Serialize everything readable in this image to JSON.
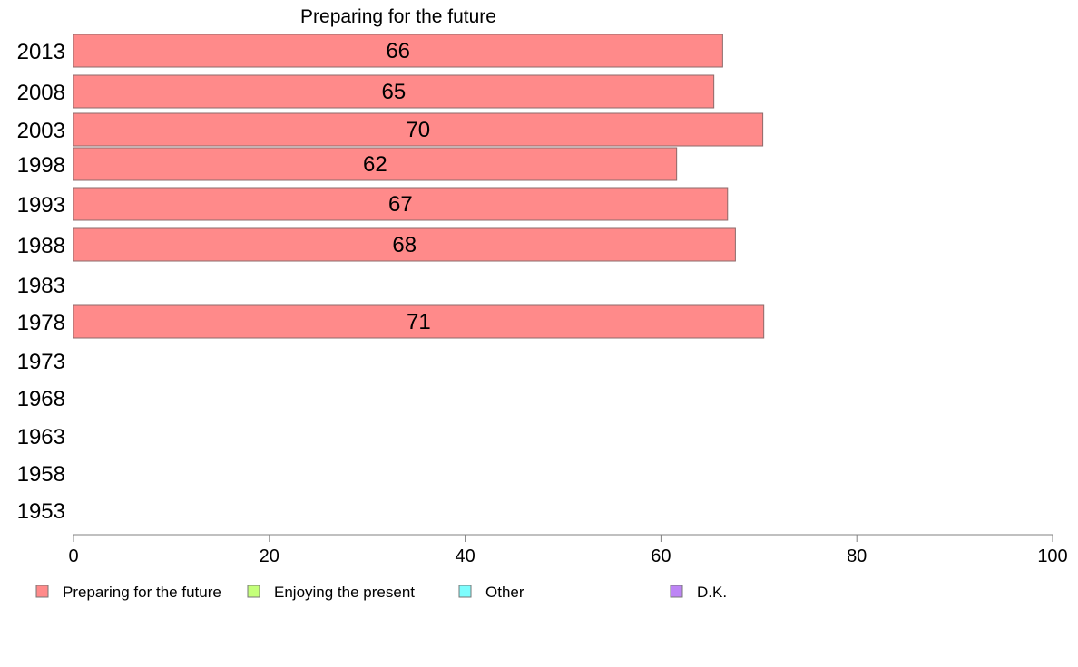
{
  "chart_data": {
    "type": "bar",
    "orientation": "horizontal",
    "title": "Preparing for the future",
    "categories": [
      "2013",
      "2008",
      "2003",
      "1998",
      "1993",
      "1988",
      "1983",
      "1978",
      "1973",
      "1968",
      "1963",
      "1958",
      "1953"
    ],
    "series": [
      {
        "name": "Preparing for the future",
        "color": "#ff8a8a",
        "values": [
          66.3,
          65.4,
          70.4,
          61.6,
          66.8,
          67.6,
          null,
          70.5,
          null,
          null,
          null,
          null,
          null
        ],
        "labels": [
          "66",
          "65",
          "70",
          "62",
          "67",
          "68",
          "",
          "71",
          "",
          "",
          "",
          "",
          ""
        ]
      }
    ],
    "xlim": [
      0,
      100
    ],
    "xticks": [
      "0",
      "20",
      "40",
      "60",
      "80",
      "100"
    ],
    "grid": false,
    "legend": {
      "placement": "bottom",
      "items": [
        {
          "label": "Preparing for the future",
          "color": "#ff8a8a"
        },
        {
          "label": "Enjoying the present",
          "color": "#c4ff7a"
        },
        {
          "label": "Other",
          "color": "#7dfdfd"
        },
        {
          "label": "D.K.",
          "color": "#bd85f5"
        }
      ]
    }
  }
}
